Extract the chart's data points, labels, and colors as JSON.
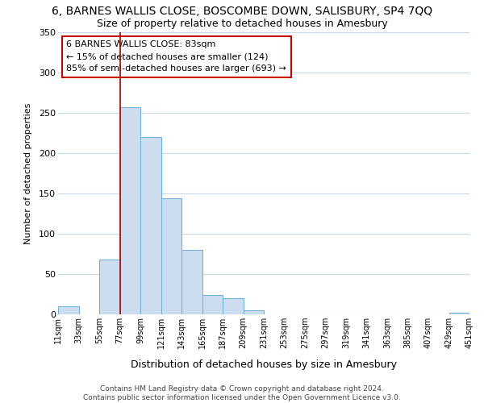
{
  "title": "6, BARNES WALLIS CLOSE, BOSCOMBE DOWN, SALISBURY, SP4 7QQ",
  "subtitle": "Size of property relative to detached houses in Amesbury",
  "xlabel": "Distribution of detached houses by size in Amesbury",
  "ylabel": "Number of detached properties",
  "bar_values": [
    10,
    0,
    68,
    257,
    220,
    144,
    80,
    24,
    20,
    5,
    0,
    0,
    0,
    0,
    0,
    0,
    0,
    0,
    0,
    2
  ],
  "bin_labels": [
    "11sqm",
    "33sqm",
    "55sqm",
    "77sqm",
    "99sqm",
    "121sqm",
    "143sqm",
    "165sqm",
    "187sqm",
    "209sqm",
    "231sqm",
    "253sqm",
    "275sqm",
    "297sqm",
    "319sqm",
    "341sqm",
    "363sqm",
    "385sqm",
    "407sqm",
    "429sqm",
    "451sqm"
  ],
  "bar_color": "#ccddf0",
  "bar_edge_color": "#6baed6",
  "annotation_text": "6 BARNES WALLIS CLOSE: 83sqm\n← 15% of detached houses are smaller (124)\n85% of semi-detached houses are larger (693) →",
  "annotation_box_edge": "#cc0000",
  "vline_color": "#aa0000",
  "ylim": [
    0,
    350
  ],
  "yticks": [
    0,
    50,
    100,
    150,
    200,
    250,
    300,
    350
  ],
  "footer_text": "Contains HM Land Registry data © Crown copyright and database right 2024.\nContains public sector information licensed under the Open Government Licence v3.0.",
  "bg_color": "#ffffff",
  "grid_color": "#c8d8e8"
}
